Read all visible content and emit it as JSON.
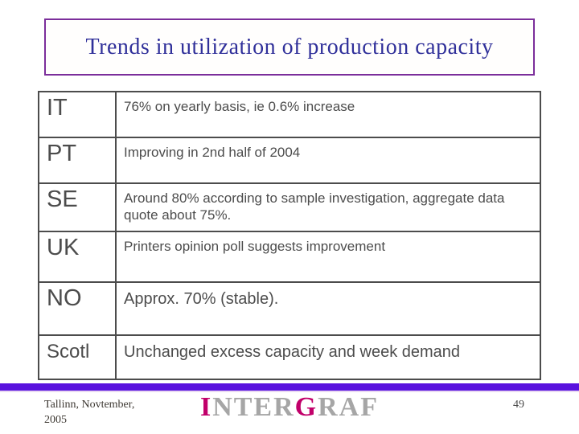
{
  "slide": {
    "title": "Trends in utilization of production capacity",
    "table": {
      "rows": [
        {
          "country": "IT",
          "description": "76% on yearly basis, ie 0.6% increase"
        },
        {
          "country": "PT",
          "description": "Improving in 2nd half of 2004"
        },
        {
          "country": "SE",
          "description": "Around 80% according to sample investigation, aggregate data quote about 75%."
        },
        {
          "country": "UK",
          "description": "Printers opinion poll suggests improvement"
        },
        {
          "country": "NO",
          "description": "Approx. 70% (stable)."
        },
        {
          "country": "Scotl",
          "description": "Unchanged excess capacity and week demand"
        }
      ]
    },
    "footer": {
      "date_line1": "Tallinn, Novtember,",
      "date_line2": "2005",
      "logo": {
        "part1": "I",
        "part2": "NTER",
        "part3": "G",
        "part4": "RAF"
      },
      "page_number": "49"
    },
    "colors": {
      "title_text": "#30309A",
      "title_border": "#7B2E9B",
      "table_border": "#4C4C4C",
      "table_text": "#4C4C4C",
      "footer_bar": "#5912DE",
      "logo_gray": "#A6A6A6",
      "logo_magenta": "#C1006A"
    }
  }
}
